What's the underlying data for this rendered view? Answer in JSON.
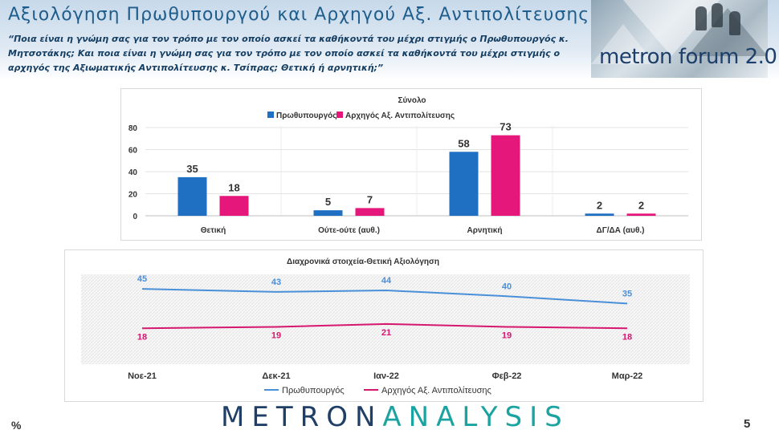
{
  "header": {
    "title": "Αξιολόγηση Πρωθυπουργού και Αρχηγού Αξ. Αντιπολίτευσης",
    "subtitle": "“Ποια είναι η γνώμη σας για τον τρόπο με τον οποίο ασκεί τα καθήκοντά του μέχρι στιγμής ο Πρωθυπουργός κ. Μητσοτάκης; Και ποια είναι η γνώμη σας για τον τρόπο με τον οποίο ασκεί τα καθήκοντά του μέχρι στιγμής ο αρχηγός της Αξιωματικής Αντιπολίτευσης κ. Τσίπρας; Θετική ή αρνητική;”",
    "banner_text": "metron forum 2.0"
  },
  "footer": {
    "percent_sign": "%",
    "page_number": "5",
    "logo_part1": "METRON",
    "logo_part2": "ANALYSIS"
  },
  "colors": {
    "blue": "#1f6fc2",
    "pink": "#e5177a",
    "line_blue": "#4a90d9",
    "line_pink": "#d6176f"
  },
  "chart_data": [
    {
      "type": "bar",
      "title": "Σύνολο",
      "categories": [
        "Θετική",
        "Ούτε-ούτε (αυθ.)",
        "Αρνητική",
        "ΔΓ/ΔΑ (αυθ.)"
      ],
      "series": [
        {
          "name": "Πρωθυπουργός",
          "values": [
            35,
            5,
            58,
            2
          ]
        },
        {
          "name": "Αρχηγός Αξ. Αντιπολίτευσης",
          "values": [
            18,
            7,
            73,
            2
          ]
        }
      ],
      "yticks": [
        0,
        20,
        40,
        60,
        80
      ],
      "ylim": [
        0,
        80
      ],
      "legend": "top"
    },
    {
      "type": "line",
      "title": "Διαχρονικά στοιχεία-Θετική Αξιολόγηση",
      "categories": [
        "Νοε-21",
        "Δεκ-21",
        "Ιαν-22",
        "Φεβ-22",
        "Μαρ-22"
      ],
      "series": [
        {
          "name": "Πρωθυπουργός",
          "values": [
            45,
            43,
            44,
            40,
            35
          ]
        },
        {
          "name": "Αρχηγός Αξ. Αντιπολίτευσης",
          "values": [
            18,
            19,
            21,
            19,
            18
          ]
        }
      ],
      "legend": "bottom"
    }
  ]
}
